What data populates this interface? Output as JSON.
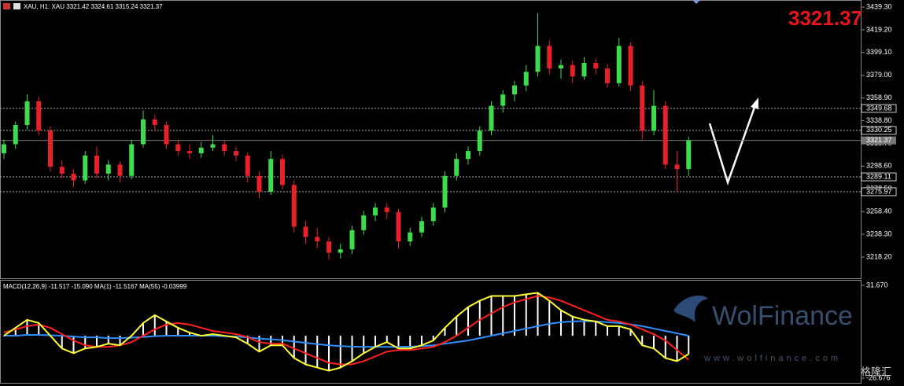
{
  "chart_data": [
    {
      "type": "candlestick",
      "title": "XAU, H1: XAU 3321.42 3324.61 3315.24 3321.37",
      "up_color": "#3ddc4c",
      "down_color": "#e8202a",
      "ylim": [
        3199.4,
        3445.6
      ],
      "yticks": [
        {
          "value": 3439.3,
          "label": "3439.30"
        },
        {
          "value": 3419.2,
          "label": "3419.20"
        },
        {
          "value": 3399.1,
          "label": "3399.10"
        },
        {
          "value": 3379.0,
          "label": "3379.00"
        },
        {
          "value": 3358.9,
          "label": "3358.90"
        },
        {
          "value": 3338.8,
          "label": "3338.80"
        },
        {
          "value": 3318.7,
          "label": "3318.70"
        },
        {
          "value": 3298.6,
          "label": "3298.60"
        },
        {
          "value": 3278.5,
          "label": "3278.50"
        },
        {
          "value": 3258.4,
          "label": "3258.40"
        },
        {
          "value": 3238.3,
          "label": "3238.30"
        },
        {
          "value": 3218.2,
          "label": "3218.20"
        }
      ],
      "levels": [
        {
          "value": 3349.68,
          "label": "3349.68"
        },
        {
          "value": 3330.25,
          "label": "3330.25"
        },
        {
          "value": 3289.11,
          "label": "3289.11"
        },
        {
          "value": 3275.97,
          "label": "3275.97"
        }
      ],
      "current": {
        "value": 3321.37,
        "label": "3321.37"
      },
      "ohlc": [
        [
          3310,
          3322,
          3305,
          3318
        ],
        [
          3318,
          3338,
          3314,
          3335
        ],
        [
          3335,
          3362,
          3331,
          3356
        ],
        [
          3356,
          3360,
          3326,
          3330
        ],
        [
          3330,
          3334,
          3294,
          3298
        ],
        [
          3298,
          3304,
          3288,
          3292
        ],
        [
          3292,
          3296,
          3280,
          3286
        ],
        [
          3286,
          3312,
          3283,
          3308
        ],
        [
          3308,
          3316,
          3288,
          3292
        ],
        [
          3292,
          3304,
          3286,
          3300
        ],
        [
          3300,
          3303,
          3284,
          3290
        ],
        [
          3290,
          3322,
          3287,
          3318
        ],
        [
          3318,
          3348,
          3315,
          3340
        ],
        [
          3340,
          3344,
          3330,
          3335
        ],
        [
          3335,
          3338,
          3314,
          3318
        ],
        [
          3318,
          3322,
          3308,
          3312
        ],
        [
          3312,
          3318,
          3305,
          3310
        ],
        [
          3310,
          3320,
          3306,
          3315
        ],
        [
          3315,
          3326,
          3312,
          3318
        ],
        [
          3318,
          3321,
          3308,
          3312
        ],
        [
          3312,
          3316,
          3303,
          3308
        ],
        [
          3308,
          3311,
          3284,
          3290
        ],
        [
          3290,
          3294,
          3270,
          3276
        ],
        [
          3276,
          3312,
          3273,
          3305
        ],
        [
          3305,
          3309,
          3278,
          3282
        ],
        [
          3282,
          3286,
          3240,
          3245
        ],
        [
          3245,
          3250,
          3230,
          3236
        ],
        [
          3236,
          3244,
          3226,
          3232
        ],
        [
          3232,
          3236,
          3216,
          3222
        ],
        [
          3222,
          3230,
          3217,
          3225
        ],
        [
          3225,
          3246,
          3221,
          3242
        ],
        [
          3242,
          3259,
          3238,
          3255
        ],
        [
          3255,
          3266,
          3250,
          3262
        ],
        [
          3262,
          3266,
          3252,
          3258
        ],
        [
          3258,
          3261,
          3226,
          3232
        ],
        [
          3232,
          3244,
          3228,
          3240
        ],
        [
          3240,
          3254,
          3236,
          3250
        ],
        [
          3250,
          3266,
          3246,
          3262
        ],
        [
          3262,
          3294,
          3258,
          3290
        ],
        [
          3290,
          3310,
          3286,
          3305
        ],
        [
          3305,
          3316,
          3300,
          3312
        ],
        [
          3312,
          3334,
          3308,
          3330
        ],
        [
          3330,
          3356,
          3326,
          3352
        ],
        [
          3352,
          3366,
          3346,
          3362
        ],
        [
          3362,
          3374,
          3356,
          3370
        ],
        [
          3370,
          3388,
          3365,
          3382
        ],
        [
          3382,
          3434,
          3378,
          3405
        ],
        [
          3405,
          3410,
          3380,
          3385
        ],
        [
          3385,
          3393,
          3376,
          3388
        ],
        [
          3388,
          3392,
          3372,
          3378
        ],
        [
          3378,
          3395,
          3375,
          3390
        ],
        [
          3390,
          3394,
          3380,
          3385
        ],
        [
          3385,
          3389,
          3368,
          3372
        ],
        [
          3372,
          3412,
          3369,
          3405
        ],
        [
          3405,
          3408,
          3365,
          3370
        ],
        [
          3370,
          3374,
          3322,
          3330
        ],
        [
          3330,
          3366,
          3326,
          3352
        ],
        [
          3352,
          3356,
          3296,
          3300
        ],
        [
          3300,
          3312,
          3276,
          3296
        ],
        [
          3296,
          3324.61,
          3290,
          3321.37
        ]
      ]
    },
    {
      "type": "macd",
      "title": "MACD(12,26,9) -11.517 -15.090 MA(1) -11.5167 MA(55) -0.03999",
      "ylim": [
        -29.6,
        34.6
      ],
      "yticks": [
        {
          "value": 31.67,
          "label": "31.670"
        },
        {
          "value": -26.676,
          "label": "-26.676"
        }
      ],
      "macd": {
        "color": "#ffffff",
        "line_color": "#ffff33",
        "values": [
          0,
          5,
          10,
          8,
          0,
          -8,
          -11,
          -8,
          -7,
          -5,
          -6,
          0,
          8,
          13,
          9,
          5,
          2,
          0,
          1,
          0,
          -1,
          -5,
          -10,
          -6,
          -6,
          -14,
          -18,
          -20,
          -22,
          -20,
          -16,
          -11,
          -7,
          -4,
          -8,
          -8,
          -6,
          -3,
          5,
          12,
          18,
          22,
          25,
          25,
          25,
          26,
          27,
          22,
          16,
          12,
          10,
          9,
          6,
          6,
          4,
          -6,
          -8,
          -14,
          -16,
          -11.517
        ]
      },
      "signal": {
        "color": "#ff2020",
        "values": [
          2,
          4,
          6,
          7,
          5,
          1,
          -3,
          -6,
          -7,
          -7,
          -6,
          -4,
          0,
          4,
          7,
          8,
          7,
          5,
          3,
          2,
          1,
          -1,
          -4,
          -5,
          -5,
          -8,
          -11,
          -14,
          -17,
          -18,
          -18,
          -16,
          -13,
          -10,
          -9,
          -9,
          -8,
          -7,
          -4,
          0,
          5,
          10,
          14,
          18,
          21,
          23,
          25,
          24,
          22,
          19,
          16,
          13,
          10,
          9,
          7,
          4,
          1,
          -3,
          -9,
          -15.09
        ]
      },
      "ma55": {
        "color": "#2f8fff",
        "values": [
          0,
          0,
          0.5,
          0.5,
          0.3,
          0,
          -0.5,
          -1,
          -1,
          -1.5,
          -1.5,
          -1.2,
          -0.8,
          -0.3,
          0,
          0,
          0,
          0,
          0,
          -0.3,
          -0.6,
          -1,
          -1.8,
          -2.2,
          -2.8,
          -3.6,
          -4.5,
          -5.3,
          -6,
          -6.5,
          -6.8,
          -7,
          -7,
          -7,
          -7,
          -6.8,
          -6.5,
          -6,
          -5,
          -4,
          -3,
          -1.5,
          0,
          1.5,
          3,
          4.5,
          6,
          7.5,
          8.5,
          9,
          9.2,
          9,
          8.5,
          8,
          7.2,
          6,
          4.5,
          3,
          1.5,
          -0.03999
        ]
      }
    }
  ],
  "watermark": {
    "brand": "WolFinance",
    "url": "www.wolfinance.com",
    "source": "格隆汇"
  }
}
